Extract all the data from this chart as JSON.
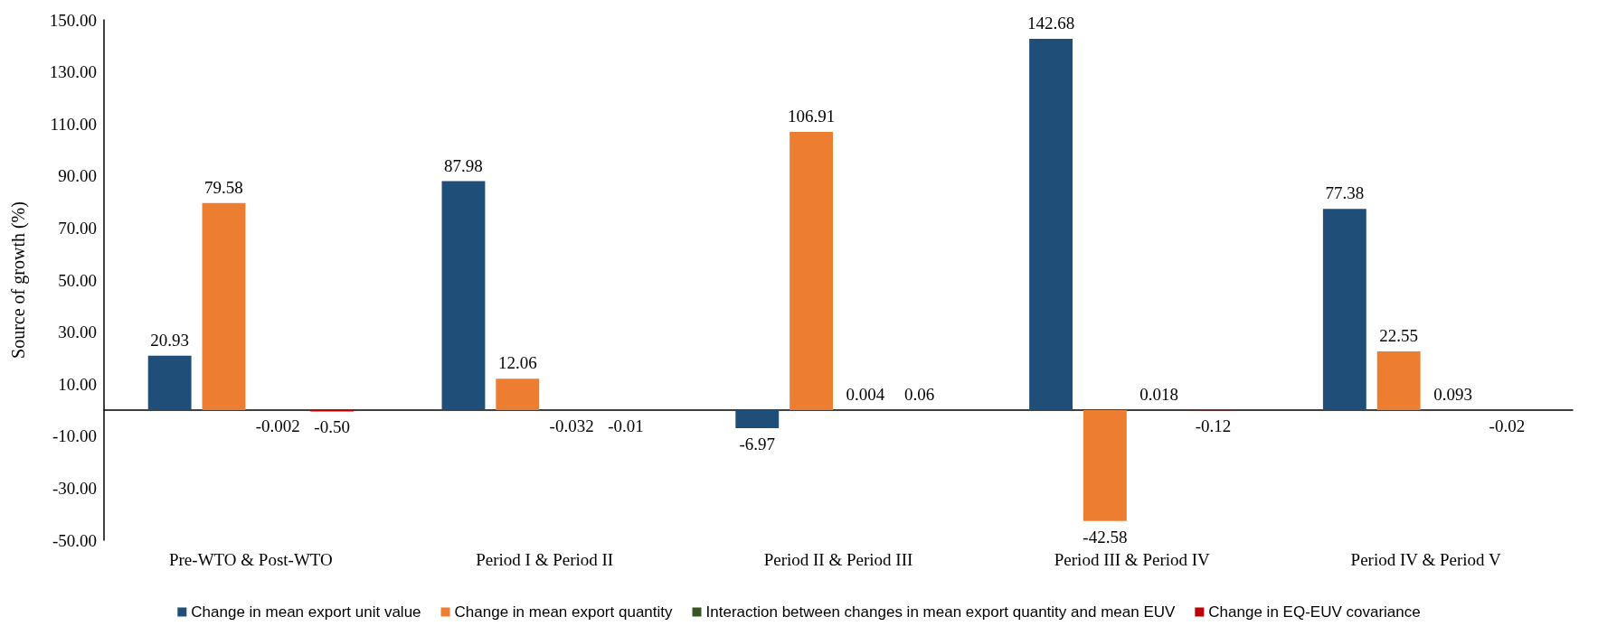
{
  "chart_data": {
    "type": "bar",
    "ylabel": "Source of growth (%)",
    "categories": [
      "Pre-WTO & Post-WTO",
      "Period I & Period II",
      "Period II & Period III",
      "Period III & Period IV",
      "Period IV & Period V"
    ],
    "series": [
      {
        "name": "Change in mean export unit value",
        "color": "#1f4e79",
        "values": [
          20.93,
          87.98,
          -6.97,
          142.68,
          77.38
        ],
        "value_labels": [
          "20.93",
          "87.98",
          "-6.97",
          "142.68",
          "77.38"
        ]
      },
      {
        "name": "Change in mean export quantity",
        "color": "#ed7d31",
        "values": [
          79.58,
          12.06,
          106.91,
          -42.58,
          22.55
        ],
        "value_labels": [
          "79.58",
          "12.06",
          "106.91",
          "-42.58",
          "22.55"
        ]
      },
      {
        "name": "Interaction between changes in mean export quantity and mean EUV",
        "color": "#375623",
        "values": [
          -0.002,
          -0.032,
          0.004,
          0.018,
          0.093
        ],
        "value_labels": [
          "-0.002",
          "-0.032",
          "0.004",
          "0.018",
          "0.093"
        ]
      },
      {
        "name": "Change in EQ-EUV covariance",
        "color": "#c00000",
        "values": [
          -0.5,
          -0.01,
          0.06,
          -0.12,
          -0.02
        ],
        "value_labels": [
          "-0.50",
          "-0.01",
          "0.06",
          "-0.12",
          "-0.02"
        ]
      }
    ],
    "ylim": [
      -50,
      150
    ],
    "yticks": [
      {
        "value": -50,
        "label": "-50.00"
      },
      {
        "value": -30,
        "label": "-30.00"
      },
      {
        "value": -10,
        "label": "-10.00"
      },
      {
        "value": 10,
        "label": "10.00"
      },
      {
        "value": 30,
        "label": "30.00"
      },
      {
        "value": 50,
        "label": "50.00"
      },
      {
        "value": 70,
        "label": "70.00"
      },
      {
        "value": 90,
        "label": "90.00"
      },
      {
        "value": 110,
        "label": "110.00"
      },
      {
        "value": 130,
        "label": "130.00"
      },
      {
        "value": 150,
        "label": "150.00"
      }
    ],
    "grid": false,
    "legend": "bottom"
  }
}
